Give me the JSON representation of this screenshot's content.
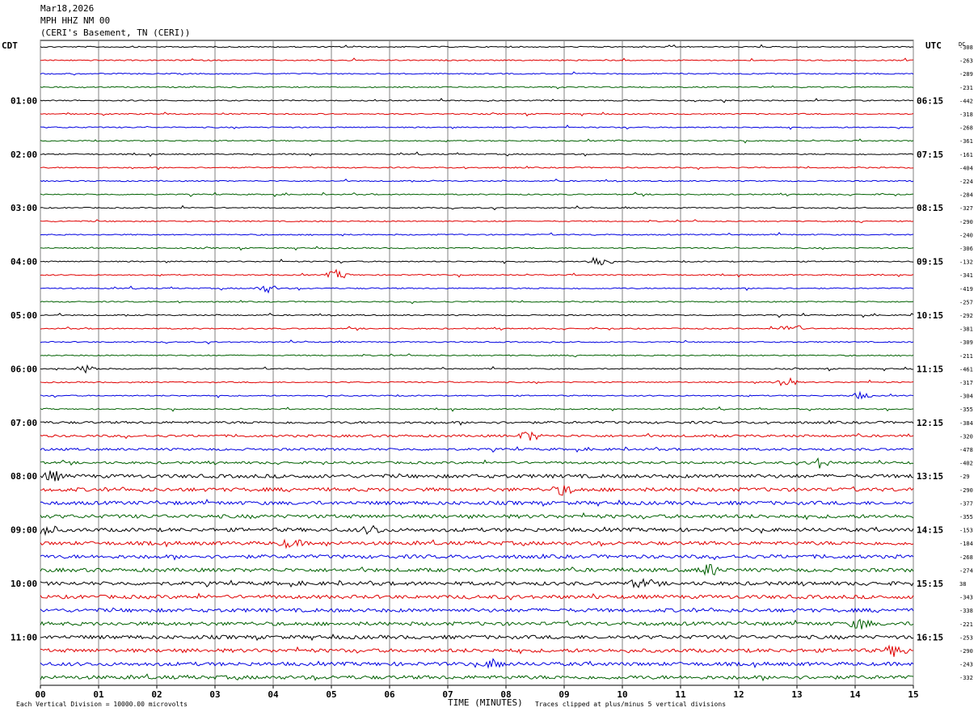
{
  "header": {
    "date": "Mar18,2026",
    "station": "MPH HHZ NM 00",
    "location": "(CERI's Basement, TN (CERI))"
  },
  "left_timezone": "CDT",
  "right_timezone": "UTC",
  "dc_label": "DC",
  "footer": {
    "scale_note": "Each Vertical Division = 10000.00 microvolts",
    "x_title": "TIME (MINUTES)",
    "clip_note": "Traces clipped at plus/minus 5 vertical divisions"
  },
  "colors": {
    "trace_cycle": [
      "#000000",
      "#e00000",
      "#0000e0",
      "#006000"
    ],
    "grid": "#808080"
  },
  "chart_data": {
    "type": "line",
    "title": "",
    "xlabel": "TIME (MINUTES)",
    "x_range": [
      0,
      15
    ],
    "x_ticks": [
      "00",
      "01",
      "02",
      "03",
      "04",
      "05",
      "06",
      "07",
      "08",
      "09",
      "10",
      "11",
      "12",
      "13",
      "14",
      "15"
    ],
    "left_hour_labels": [
      "01:00",
      "02:00",
      "03:00",
      "04:00",
      "05:00",
      "06:00",
      "07:00",
      "08:00",
      "09:00",
      "10:00",
      "11:00"
    ],
    "right_hour_labels": [
      "06:15",
      "07:15",
      "08:15",
      "09:15",
      "10:15",
      "11:15",
      "12:15",
      "13:15",
      "14:15",
      "15:15",
      "16:15"
    ],
    "dc_offsets": [
      "-308",
      "-263",
      "-289",
      "-231",
      "-442",
      "-318",
      "-268",
      "-361",
      "-161",
      "-404",
      "-224",
      "-284",
      "-327",
      "-290",
      "-240",
      "-306",
      "-132",
      "-341",
      "-419",
      "-257",
      "-292",
      "-381",
      "-309",
      "-211",
      "-461",
      "-317",
      "-304",
      "-355",
      "-384",
      "-320",
      "-478",
      "-402",
      "-29",
      "-290",
      "-377",
      "-355",
      "-153",
      "-184",
      "-268",
      "-274",
      "38",
      "-343",
      "-338",
      "-221",
      "-253",
      "-290",
      "-243",
      "-332"
    ],
    "events": [
      {
        "trace": 16,
        "minute": 9.6,
        "strength": 8
      },
      {
        "trace": 17,
        "minute": 5.1,
        "strength": 6
      },
      {
        "trace": 18,
        "minute": 3.9,
        "strength": 5
      },
      {
        "trace": 21,
        "minute": 12.9,
        "strength": 7
      },
      {
        "trace": 24,
        "minute": 0.8,
        "strength": 5
      },
      {
        "trace": 25,
        "minute": 12.8,
        "strength": 7
      },
      {
        "trace": 26,
        "minute": 14.1,
        "strength": 4
      },
      {
        "trace": 29,
        "minute": 8.4,
        "strength": 6
      },
      {
        "trace": 31,
        "minute": 13.4,
        "strength": 6
      },
      {
        "trace": 32,
        "minute": 0.2,
        "strength": 6
      },
      {
        "trace": 33,
        "minute": 9.0,
        "strength": 6
      },
      {
        "trace": 36,
        "minute": 0.1,
        "strength": 6
      },
      {
        "trace": 36,
        "minute": 5.7,
        "strength": 5
      },
      {
        "trace": 37,
        "minute": 4.3,
        "strength": 5
      },
      {
        "trace": 39,
        "minute": 11.5,
        "strength": 7
      },
      {
        "trace": 40,
        "minute": 10.3,
        "strength": 5
      },
      {
        "trace": 43,
        "minute": 14.1,
        "strength": 6
      },
      {
        "trace": 45,
        "minute": 14.7,
        "strength": 7
      },
      {
        "trace": 46,
        "minute": 7.8,
        "strength": 5
      }
    ]
  }
}
